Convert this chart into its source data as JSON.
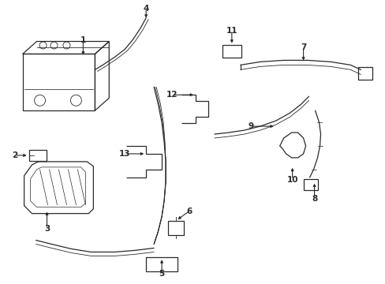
{
  "bg_color": "#ffffff",
  "line_color": "#2a2a2a",
  "fig_w": 4.89,
  "fig_h": 3.6,
  "dpi": 100
}
